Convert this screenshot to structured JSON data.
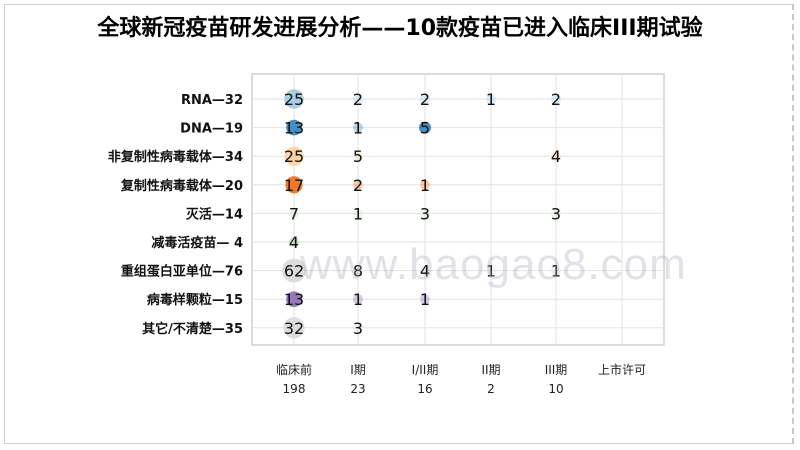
{
  "title": "全球新冠疫苗研发进展分析——10款疫苗已进入临床III期试验",
  "watermark": "www.baogao8.com",
  "chart_data": {
    "type": "scatter",
    "title": "全球新冠疫苗研发进展分析——10款疫苗已进入临床III期试验",
    "grid": true,
    "categories_y": [
      "RNA—32",
      "DNA—19",
      "非复制性病毒载体—34",
      "复制性病毒载体—20",
      "灭活—14",
      "减毒活疫苗— 4",
      "重组蛋白亚单位—76",
      "病毒样颗粒—15",
      "其它/不清楚—35"
    ],
    "categories_x": [
      {
        "label": "临床前",
        "total": "198"
      },
      {
        "label": "I期",
        "total": "23"
      },
      {
        "label": "I/II期",
        "total": "16"
      },
      {
        "label": "II期",
        "total": "2"
      },
      {
        "label": "III期",
        "total": "10"
      },
      {
        "label": "上市许可",
        "total": ""
      }
    ],
    "row_colors": [
      "#9ecae1",
      "#3182bd",
      "#fdd0a2",
      "#f16913",
      "#c7e9c0",
      "#74c476",
      "#d9d9d9",
      "#8c6bb1",
      "#d9d9d9"
    ],
    "points": [
      {
        "row": 0,
        "col": 0,
        "value": 25,
        "bubble": true
      },
      {
        "row": 0,
        "col": 1,
        "value": 2,
        "bubble": false
      },
      {
        "row": 0,
        "col": 2,
        "value": 2,
        "bubble": false
      },
      {
        "row": 0,
        "col": 3,
        "value": 1,
        "bubble": false
      },
      {
        "row": 0,
        "col": 4,
        "value": 2,
        "bubble": false
      },
      {
        "row": 1,
        "col": 0,
        "value": 13,
        "bubble": true
      },
      {
        "row": 1,
        "col": 1,
        "value": 1,
        "bubble": false
      },
      {
        "row": 1,
        "col": 2,
        "value": 5,
        "bubble": true
      },
      {
        "row": 2,
        "col": 0,
        "value": 25,
        "bubble": true
      },
      {
        "row": 2,
        "col": 1,
        "value": 5,
        "bubble": false
      },
      {
        "row": 2,
        "col": 4,
        "value": 4,
        "bubble": false
      },
      {
        "row": 3,
        "col": 0,
        "value": 17,
        "bubble": true
      },
      {
        "row": 3,
        "col": 1,
        "value": 2,
        "bubble": false
      },
      {
        "row": 3,
        "col": 2,
        "value": 1,
        "bubble": false
      },
      {
        "row": 4,
        "col": 0,
        "value": 7,
        "bubble": false
      },
      {
        "row": 4,
        "col": 1,
        "value": 1,
        "bubble": false
      },
      {
        "row": 4,
        "col": 2,
        "value": 3,
        "bubble": false
      },
      {
        "row": 4,
        "col": 4,
        "value": 3,
        "bubble": false
      },
      {
        "row": 5,
        "col": 0,
        "value": 4,
        "bubble": false
      },
      {
        "row": 6,
        "col": 0,
        "value": 62,
        "bubble": true
      },
      {
        "row": 6,
        "col": 1,
        "value": 8,
        "bubble": false
      },
      {
        "row": 6,
        "col": 2,
        "value": 4,
        "bubble": false
      },
      {
        "row": 6,
        "col": 3,
        "value": 1,
        "bubble": false
      },
      {
        "row": 6,
        "col": 4,
        "value": 1,
        "bubble": false
      },
      {
        "row": 7,
        "col": 0,
        "value": 13,
        "bubble": true
      },
      {
        "row": 7,
        "col": 1,
        "value": 1,
        "bubble": false
      },
      {
        "row": 7,
        "col": 2,
        "value": 1,
        "bubble": false
      },
      {
        "row": 8,
        "col": 0,
        "value": 32,
        "bubble": true
      },
      {
        "row": 8,
        "col": 1,
        "value": 3,
        "bubble": false
      }
    ]
  }
}
